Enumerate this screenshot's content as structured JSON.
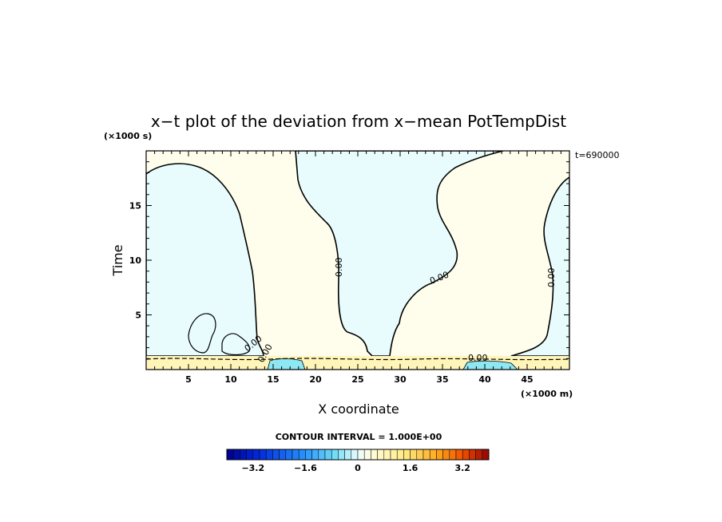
{
  "chart_data": {
    "type": "heatmap",
    "title": "x−t plot of the deviation from x−mean PotTempDist",
    "xlabel": "X coordinate",
    "ylabel": "Time",
    "x_unit": "(×1000 m)",
    "y_unit": "(×1000 s)",
    "time_annotation": "t=690000",
    "xlim": [
      0,
      50
    ],
    "ylim": [
      0,
      20
    ],
    "x_ticks": [
      5,
      10,
      15,
      20,
      25,
      30,
      35,
      40,
      45
    ],
    "y_ticks": [
      5,
      10,
      15
    ],
    "contour_labels": [
      "0.00",
      "0.00",
      "0.00",
      "0.00",
      "0.00",
      "0.00"
    ],
    "contour_interval_label": "CONTOUR INTERVAL = 1.000E+00",
    "colorbar": {
      "range": [
        -4,
        4
      ],
      "tick_values": [
        -3.2,
        -1.6,
        0,
        1.6,
        3.2
      ],
      "tick_labels": [
        "−3.2",
        "−1.6",
        "0",
        "1.6",
        "3.2"
      ],
      "n_bins": 40
    },
    "regions": [
      {
        "sign": "negative",
        "x_range": [
          0,
          13
        ],
        "t_range": [
          1,
          18.8
        ]
      },
      {
        "sign": "positive",
        "x_range": [
          13,
          28
        ],
        "t_range": [
          1,
          20
        ]
      },
      {
        "sign": "negative",
        "x_range": [
          17,
          38
        ],
        "t_range": [
          1.5,
          20
        ]
      },
      {
        "sign": "positive",
        "x_range": [
          30,
          47
        ],
        "t_range": [
          1,
          20
        ]
      },
      {
        "sign": "negative",
        "x_range": [
          46,
          50
        ],
        "t_range": [
          1,
          17
        ]
      },
      {
        "sign": "positive",
        "x_range": [
          0,
          50
        ],
        "t_range": [
          0,
          1
        ]
      }
    ],
    "colors": {
      "positive_fill": "#fffdeb",
      "negative_fill": "#e8fcfe",
      "positive_band": "#fff5b8",
      "negative_band": "#8ee8f4"
    }
  }
}
